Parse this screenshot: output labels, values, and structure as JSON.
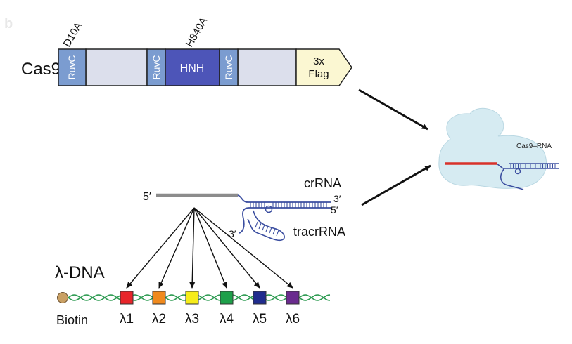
{
  "panel_label": "b",
  "cas9": {
    "name": "Cas9",
    "mutations": {
      "d10a": "D10A",
      "h840a": "H840A"
    },
    "domains": {
      "ruvc1": "RuvC",
      "ruvc2": "RuvC",
      "hnh": "HNH",
      "ruvc3": "RuvC",
      "flag_line1": "3x",
      "flag_line2": "Flag"
    }
  },
  "complex_label": "Cas9–RNA",
  "rna": {
    "crrna_label": "crRNA",
    "tracrrna_label": "tracrRNA",
    "five_prime_cr": "5′",
    "three_prime_cr": "3′",
    "five_prime_tracr": "5′",
    "three_prime_tracr": "3′"
  },
  "lambda": {
    "title": "λ-DNA",
    "biotin": "Biotin",
    "sites": [
      {
        "label": "λ1",
        "color": "#e8252a"
      },
      {
        "label": "λ2",
        "color": "#f08a1e"
      },
      {
        "label": "λ3",
        "color": "#f6ec1a"
      },
      {
        "label": "λ4",
        "color": "#1ea04a"
      },
      {
        "label": "λ5",
        "color": "#202c8e"
      },
      {
        "label": "λ6",
        "color": "#6a2b8e"
      }
    ]
  },
  "colors": {
    "ruvc": "#7b9cd0",
    "hnh": "#4d55b8",
    "linker": "#dcdfec",
    "flag": "#fbf7d2",
    "rna_strand": "#3b4ea0",
    "guide": "#8c8c8c",
    "complex_blob": "#d6ebf2",
    "complex_guide": "#d8322b",
    "dna_helix": "#2e9b52",
    "biotin": "#c9a064"
  }
}
